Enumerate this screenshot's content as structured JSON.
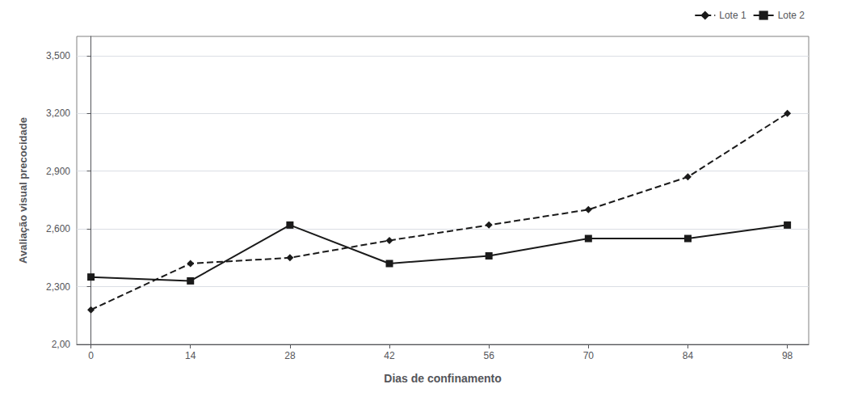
{
  "chart_data": {
    "type": "line",
    "x": [
      0,
      14,
      28,
      42,
      56,
      70,
      84,
      98
    ],
    "series": [
      {
        "name": "Lote 1",
        "color": "#1a1a1a",
        "marker": "diamond",
        "line_style": "dashed",
        "values": [
          2.18,
          2.42,
          2.45,
          2.54,
          2.62,
          2.7,
          2.87,
          3.2
        ]
      },
      {
        "name": "Lote 2",
        "color": "#1a1a1a",
        "marker": "square",
        "line_style": "solid",
        "values": [
          2.35,
          2.33,
          2.62,
          2.42,
          2.46,
          2.55,
          2.55,
          2.62
        ]
      }
    ],
    "xlabel": "Dias de confinamento",
    "ylabel": "Avaliação visual precocidade",
    "xlim": [
      -2,
      101
    ],
    "xticks": [
      0,
      14,
      28,
      42,
      56,
      70,
      84,
      98
    ],
    "ylim": [
      2.0,
      3.6
    ],
    "yticks": [
      {
        "value": 2.0,
        "label": "2,00"
      },
      {
        "value": 2.3,
        "label": "2,300"
      },
      {
        "value": 2.6,
        "label": "2,600"
      },
      {
        "value": 2.9,
        "label": "2,900"
      },
      {
        "value": 3.2,
        "label": "3,200"
      },
      {
        "value": 3.5,
        "label": "3,500"
      }
    ],
    "grid": true,
    "legend": "upper right"
  }
}
